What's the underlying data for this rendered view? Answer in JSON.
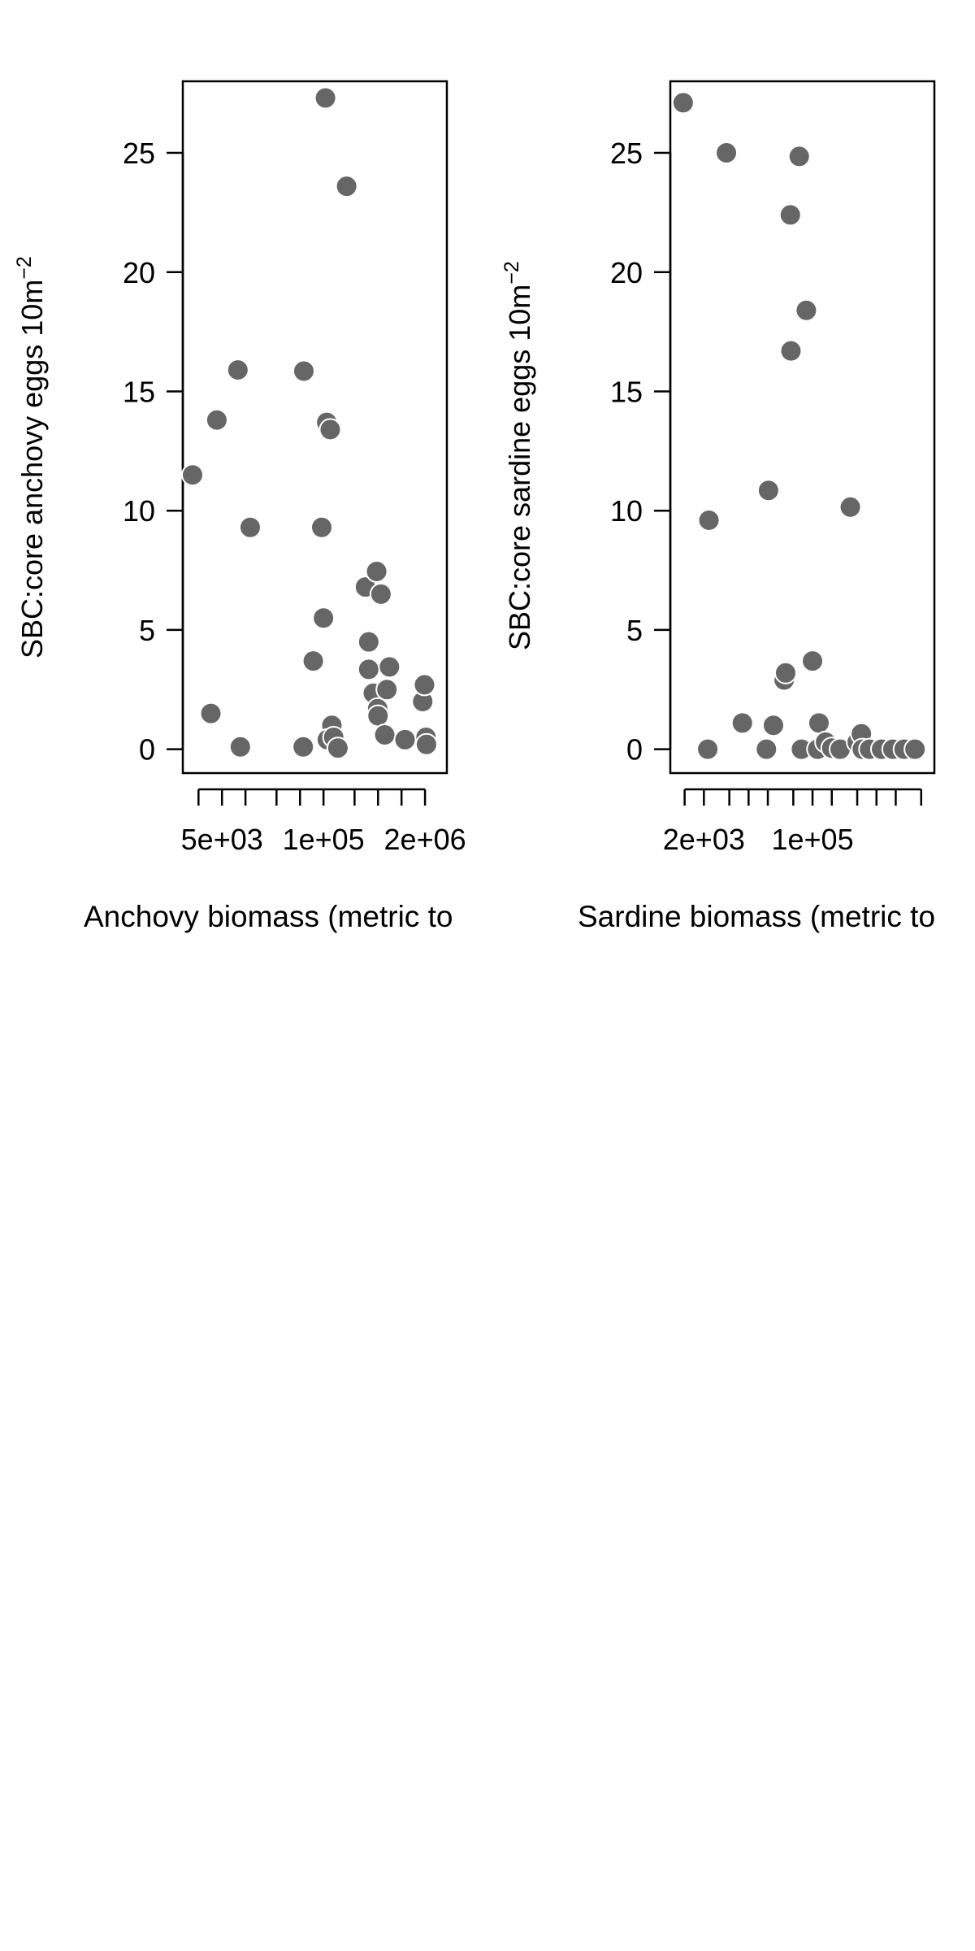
{
  "colors": {
    "point": "#666666",
    "point_edge": "#ffffff",
    "axis": "#000000",
    "background": "#ffffff"
  },
  "chart_data": [
    {
      "type": "scatter",
      "title": "",
      "xlabel": "Anchovy biomass (metric to",
      "ylabel": "SBC:core anchovy eggs 10m",
      "ylabel_superscript": "−2",
      "x_scale": "log",
      "xlim": [
        2000,
        3000000
      ],
      "ylim": [
        -1,
        28
      ],
      "grid": false,
      "x_ticks": [
        2500,
        5000,
        10000,
        25000,
        50000,
        100000,
        250000,
        500000,
        1000000,
        2000000
      ],
      "x_tick_labels": [
        {
          "value": 5000,
          "label": "5e+03"
        },
        {
          "value": 100000,
          "label": "1e+05"
        },
        {
          "value": 2000000,
          "label": "2e+06"
        }
      ],
      "y_ticks": [
        {
          "value": 0,
          "label": "0"
        },
        {
          "value": 5,
          "label": "5"
        },
        {
          "value": 10,
          "label": "10"
        },
        {
          "value": 15,
          "label": "15"
        },
        {
          "value": 20,
          "label": "20"
        },
        {
          "value": 25,
          "label": "25"
        }
      ],
      "points": [
        {
          "x": 2100,
          "y": 11.5
        },
        {
          "x": 3600,
          "y": 1.5
        },
        {
          "x": 4300,
          "y": 13.8
        },
        {
          "x": 8000,
          "y": 15.9
        },
        {
          "x": 8600,
          "y": 0.1
        },
        {
          "x": 11500,
          "y": 9.3
        },
        {
          "x": 56000,
          "y": 15.85
        },
        {
          "x": 55000,
          "y": 0.1
        },
        {
          "x": 74000,
          "y": 3.7
        },
        {
          "x": 95000,
          "y": 9.3
        },
        {
          "x": 100000,
          "y": 5.5
        },
        {
          "x": 106000,
          "y": 27.3
        },
        {
          "x": 110000,
          "y": 13.7
        },
        {
          "x": 122000,
          "y": 13.4
        },
        {
          "x": 128000,
          "y": 1.0
        },
        {
          "x": 112000,
          "y": 0.4
        },
        {
          "x": 135000,
          "y": 0.5
        },
        {
          "x": 153000,
          "y": 0.05
        },
        {
          "x": 198000,
          "y": 23.6
        },
        {
          "x": 345000,
          "y": 6.8
        },
        {
          "x": 380000,
          "y": 4.5
        },
        {
          "x": 380000,
          "y": 3.35
        },
        {
          "x": 435000,
          "y": 2.35
        },
        {
          "x": 480000,
          "y": 7.45
        },
        {
          "x": 495000,
          "y": 1.7
        },
        {
          "x": 500000,
          "y": 1.4
        },
        {
          "x": 545000,
          "y": 6.5
        },
        {
          "x": 610000,
          "y": 0.6
        },
        {
          "x": 650000,
          "y": 2.5
        },
        {
          "x": 700000,
          "y": 3.45
        },
        {
          "x": 1110000,
          "y": 0.4
        },
        {
          "x": 1870000,
          "y": 2.0
        },
        {
          "x": 1970000,
          "y": 2.7
        },
        {
          "x": 2060000,
          "y": 0.5
        },
        {
          "x": 2090000,
          "y": 0.2
        }
      ]
    },
    {
      "type": "scatter",
      "title": "",
      "xlabel": "Sardine biomass (metric to",
      "ylabel": "SBC:core sardine eggs 10m",
      "ylabel_superscript": "−2",
      "x_scale": "log",
      "xlim": [
        800,
        6000000
      ],
      "ylim": [
        -1,
        28
      ],
      "grid": false,
      "x_ticks": [
        1000,
        2000,
        5000,
        10000,
        20000,
        50000,
        100000,
        200000,
        500000,
        1000000,
        2000000,
        5000000
      ],
      "x_tick_labels": [
        {
          "value": 2000,
          "label": "2e+03"
        },
        {
          "value": 100000,
          "label": "1e+05"
        }
      ],
      "y_ticks": [
        {
          "value": 0,
          "label": "0"
        },
        {
          "value": 5,
          "label": "5"
        },
        {
          "value": 10,
          "label": "10"
        },
        {
          "value": 15,
          "label": "15"
        },
        {
          "value": 20,
          "label": "20"
        },
        {
          "value": 25,
          "label": "25"
        }
      ],
      "points": [
        {
          "x": 950,
          "y": 27.1
        },
        {
          "x": 2300,
          "y": 0.0
        },
        {
          "x": 2400,
          "y": 9.6
        },
        {
          "x": 4500,
          "y": 25.0
        },
        {
          "x": 8000,
          "y": 1.1
        },
        {
          "x": 19000,
          "y": 0.0
        },
        {
          "x": 20500,
          "y": 10.85
        },
        {
          "x": 24500,
          "y": 1.0
        },
        {
          "x": 36000,
          "y": 2.9
        },
        {
          "x": 38000,
          "y": 3.2
        },
        {
          "x": 45000,
          "y": 22.4
        },
        {
          "x": 46000,
          "y": 16.7
        },
        {
          "x": 62000,
          "y": 24.85
        },
        {
          "x": 67000,
          "y": 0.0
        },
        {
          "x": 80000,
          "y": 18.4
        },
        {
          "x": 100000,
          "y": 3.7
        },
        {
          "x": 120000,
          "y": 0.0
        },
        {
          "x": 126000,
          "y": 1.1
        },
        {
          "x": 160000,
          "y": 0.3
        },
        {
          "x": 200000,
          "y": 0.05
        },
        {
          "x": 270000,
          "y": 0.0
        },
        {
          "x": 390000,
          "y": 10.15
        },
        {
          "x": 500000,
          "y": 0.3
        },
        {
          "x": 580000,
          "y": 0.65
        },
        {
          "x": 600000,
          "y": 0.0
        },
        {
          "x": 780000,
          "y": 0.0
        },
        {
          "x": 1200000,
          "y": 0.0
        },
        {
          "x": 1800000,
          "y": 0.0
        },
        {
          "x": 2700000,
          "y": 0.0
        },
        {
          "x": 4000000,
          "y": 0.0
        }
      ]
    }
  ]
}
